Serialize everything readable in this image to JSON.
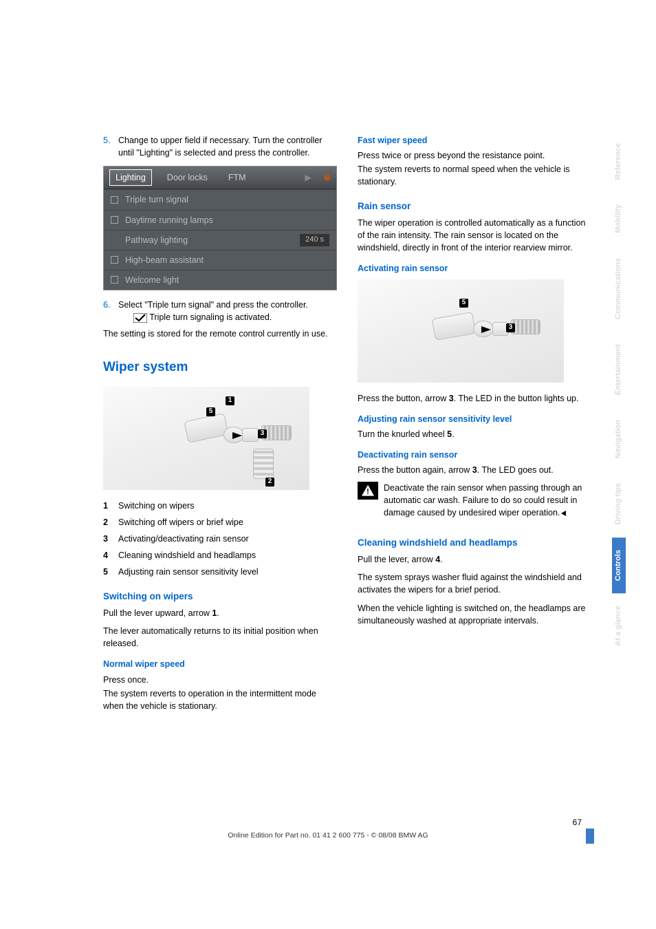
{
  "left": {
    "step5_num": "5.",
    "step5_text": "Change to upper field if necessary. Turn the controller until \"Lighting\" is selected and press the controller.",
    "ui": {
      "tab1": "Lighting",
      "tab2": "Door locks",
      "tab3": "FTM",
      "row1": "Triple turn signal",
      "row2": "Daytime running lamps",
      "row3": "Pathway lighting",
      "row3_val": "240 s",
      "row4": "High-beam assistant",
      "row5": "Welcome light"
    },
    "step6_num": "6.",
    "step6_text": "Select \"Triple turn signal\" and press the controller.",
    "step6_sub": " Triple turn signaling is activated.",
    "after6": "The setting is stored for the remote control currently in use.",
    "h2": "Wiper system",
    "defs": [
      {
        "n": "1",
        "t": "Switching on wipers"
      },
      {
        "n": "2",
        "t": "Switching off wipers or brief wipe"
      },
      {
        "n": "3",
        "t": "Activating/deactivating rain sensor"
      },
      {
        "n": "4",
        "t": "Cleaning windshield and headlamps"
      },
      {
        "n": "5",
        "t": "Adjusting rain sensor sensitivity level"
      }
    ],
    "h3_switch_on": "Switching on wipers",
    "switch_on_p1_a": "Pull the lever upward, arrow ",
    "switch_on_p1_b": "1",
    "switch_on_p1_c": ".",
    "switch_on_p2": "The lever automatically returns to its initial position when released.",
    "h4_normal": "Normal wiper speed",
    "normal_p1": "Press once.",
    "normal_p2": "The system reverts to operation in the intermittent mode when the vehicle is stationary."
  },
  "right": {
    "h4_fast": "Fast wiper speed",
    "fast_p1": "Press twice or press beyond the resistance point.",
    "fast_p2": "The system reverts to normal speed when the vehicle is stationary.",
    "h3_rain": "Rain sensor",
    "rain_p1": "The wiper operation is controlled automatically as a function of the rain intensity. The rain sensor is located on the windshield, directly in front of the interior rearview mirror.",
    "h4_act": "Activating rain sensor",
    "act_p1_a": "Press the button, arrow ",
    "act_p1_b": "3",
    "act_p1_c": ". The LED in the button lights up.",
    "h4_adj": "Adjusting rain sensor sensitivity level",
    "adj_p1_a": "Turn the knurled wheel ",
    "adj_p1_b": "5",
    "adj_p1_c": ".",
    "h4_deact": "Deactivating rain sensor",
    "deact_p1_a": "Press the button again, arrow ",
    "deact_p1_b": "3",
    "deact_p1_c": ". The LED goes out.",
    "warn_text": "Deactivate the rain sensor when passing through an automatic car wash. Failure to do so could result in damage caused by undesired wiper operation.",
    "h3_clean": "Cleaning windshield and headlamps",
    "clean_p1_a": "Pull the lever, arrow ",
    "clean_p1_b": "4",
    "clean_p1_c": ".",
    "clean_p2": "The system sprays washer fluid against the windshield and activates the wipers for a brief period.",
    "clean_p3": "When the vehicle lighting is switched on, the headlamps are simultaneously washed at appropriate intervals."
  },
  "sidebar": {
    "tabs": [
      "Reference",
      "Mobility",
      "Communications",
      "Entertainment",
      "Navigation",
      "Driving tips",
      "Controls",
      "At a glance"
    ],
    "activeIndex": 6
  },
  "footer": {
    "pagenum": "67",
    "line": "Online Edition for Part no. 01 41 2 600 775 - © 08/08 BMW AG"
  },
  "figlabels": {
    "l5": "5",
    "l3": "3",
    "l1": "1",
    "l2": "2"
  }
}
